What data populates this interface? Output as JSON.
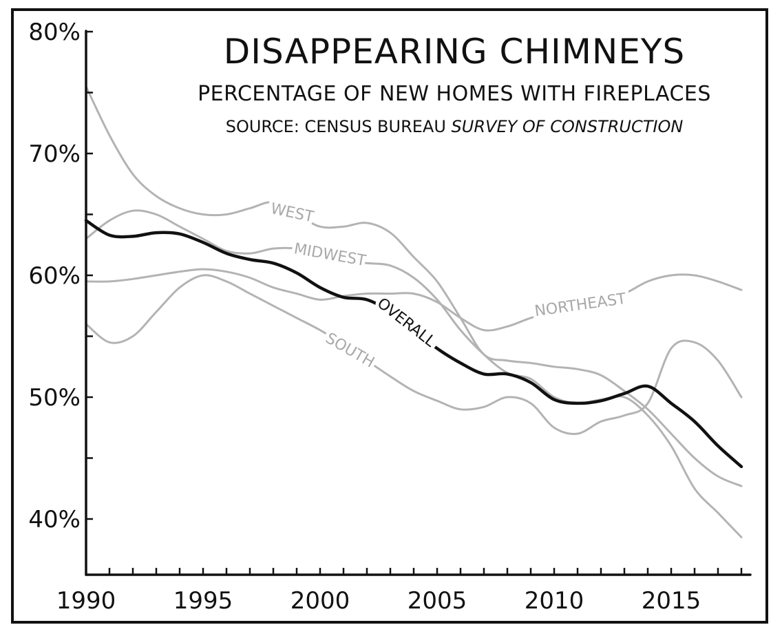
{
  "chart_data": {
    "type": "line",
    "title": "DISAPPEARING CHIMNEYS",
    "subtitle": "PERCENTAGE OF NEW HOMES WITH FIREPLACES",
    "source_prefix": "SOURCE: CENSUS BUREAU",
    "source_italic": "SURVEY OF CONSTRUCTION",
    "xlabel": "",
    "ylabel": "",
    "xlim": [
      1990,
      2018
    ],
    "ylim": [
      36,
      80
    ],
    "x_ticks": [
      {
        "value": 1990,
        "label": "1990"
      },
      {
        "value": 1995,
        "label": "1995"
      },
      {
        "value": 2000,
        "label": "2000"
      },
      {
        "value": 2005,
        "label": "2005"
      },
      {
        "value": 2010,
        "label": "2010"
      },
      {
        "value": 2015,
        "label": "2015"
      }
    ],
    "y_ticks": [
      {
        "value": 80,
        "label": "80%"
      },
      {
        "value": 70,
        "label": "70%"
      },
      {
        "value": 60,
        "label": "60%"
      },
      {
        "value": 50,
        "label": "50%"
      },
      {
        "value": 40,
        "label": "40%"
      }
    ],
    "grid": false,
    "legend": "inline labels",
    "series": [
      {
        "name": "WEST",
        "color": "#b3b3b3",
        "x": [
          1990,
          1991,
          1992,
          1993,
          1994,
          1995,
          1996,
          1997,
          1998,
          1999,
          2000,
          2001,
          2002,
          2003,
          2004,
          2005,
          2006,
          2007,
          2008,
          2009,
          2010,
          2011,
          2012,
          2013,
          2014,
          2015,
          2016,
          2017,
          2018
        ],
        "values": [
          75.5,
          71.5,
          68.3,
          66.5,
          65.5,
          65.0,
          65.0,
          65.5,
          66.0,
          65.0,
          64.0,
          64.0,
          64.3,
          63.5,
          61.5,
          59.5,
          56.5,
          53.5,
          53.0,
          52.8,
          52.5,
          52.3,
          51.8,
          50.5,
          49.0,
          47.0,
          45.0,
          43.5,
          42.7
        ]
      },
      {
        "name": "MIDWEST",
        "color": "#b3b3b3",
        "x": [
          1990,
          1991,
          1992,
          1993,
          1994,
          1995,
          1996,
          1997,
          1998,
          1999,
          2000,
          2001,
          2002,
          2003,
          2004,
          2005,
          2006,
          2007,
          2008,
          2009,
          2010,
          2011,
          2012,
          2013,
          2014,
          2015,
          2016,
          2017,
          2018
        ],
        "values": [
          63.0,
          64.5,
          65.3,
          65.0,
          64.0,
          63.0,
          62.0,
          61.8,
          62.2,
          62.2,
          61.8,
          61.2,
          61.0,
          60.8,
          59.8,
          58.0,
          55.5,
          53.5,
          52.0,
          51.5,
          50.0,
          49.5,
          49.8,
          50.0,
          48.5,
          46.0,
          42.5,
          40.5,
          38.5
        ]
      },
      {
        "name": "NORTHEAST",
        "color": "#b3b3b3",
        "x": [
          1990,
          1991,
          1992,
          1993,
          1994,
          1995,
          1996,
          1997,
          1998,
          1999,
          2000,
          2001,
          2002,
          2003,
          2004,
          2005,
          2006,
          2007,
          2008,
          2009,
          2010,
          2011,
          2012,
          2013,
          2014,
          2015,
          2016,
          2017,
          2018
        ],
        "values": [
          59.5,
          59.5,
          59.7,
          60.0,
          60.3,
          60.5,
          60.3,
          59.8,
          59.0,
          58.5,
          58.0,
          58.3,
          58.5,
          58.5,
          58.5,
          57.8,
          56.5,
          55.5,
          55.8,
          56.5,
          57.0,
          57.5,
          58.0,
          58.5,
          59.5,
          60.0,
          60.0,
          59.5,
          58.8
        ]
      },
      {
        "name": "SOUTH",
        "color": "#b3b3b3",
        "x": [
          1990,
          1991,
          1992,
          1993,
          1994,
          1995,
          1996,
          1997,
          1998,
          1999,
          2000,
          2001,
          2002,
          2003,
          2004,
          2005,
          2006,
          2007,
          2008,
          2009,
          2010,
          2011,
          2012,
          2013,
          2014,
          2015,
          2016,
          2017,
          2018
        ],
        "values": [
          56.0,
          54.5,
          55.0,
          57.0,
          59.0,
          60.0,
          59.5,
          58.5,
          57.5,
          56.5,
          55.5,
          54.3,
          53.0,
          51.7,
          50.5,
          49.7,
          49.0,
          49.2,
          50.0,
          49.5,
          47.5,
          47.0,
          48.0,
          48.5,
          49.5,
          54.0,
          54.5,
          53.0,
          50.0
        ]
      },
      {
        "name": "OVERALL",
        "color": "#111111",
        "x": [
          1990,
          1991,
          1992,
          1993,
          1994,
          1995,
          1996,
          1997,
          1998,
          1999,
          2000,
          2001,
          2002,
          2003,
          2004,
          2005,
          2006,
          2007,
          2008,
          2009,
          2010,
          2011,
          2012,
          2013,
          2014,
          2015,
          2016,
          2017,
          2018
        ],
        "values": [
          64.5,
          63.3,
          63.2,
          63.5,
          63.4,
          62.7,
          61.8,
          61.3,
          61.0,
          60.2,
          59.0,
          58.2,
          58.0,
          57.0,
          55.5,
          54.0,
          52.8,
          51.9,
          51.9,
          51.2,
          49.8,
          49.5,
          49.7,
          50.3,
          50.9,
          49.5,
          48.0,
          46.0,
          44.3
        ]
      }
    ]
  }
}
